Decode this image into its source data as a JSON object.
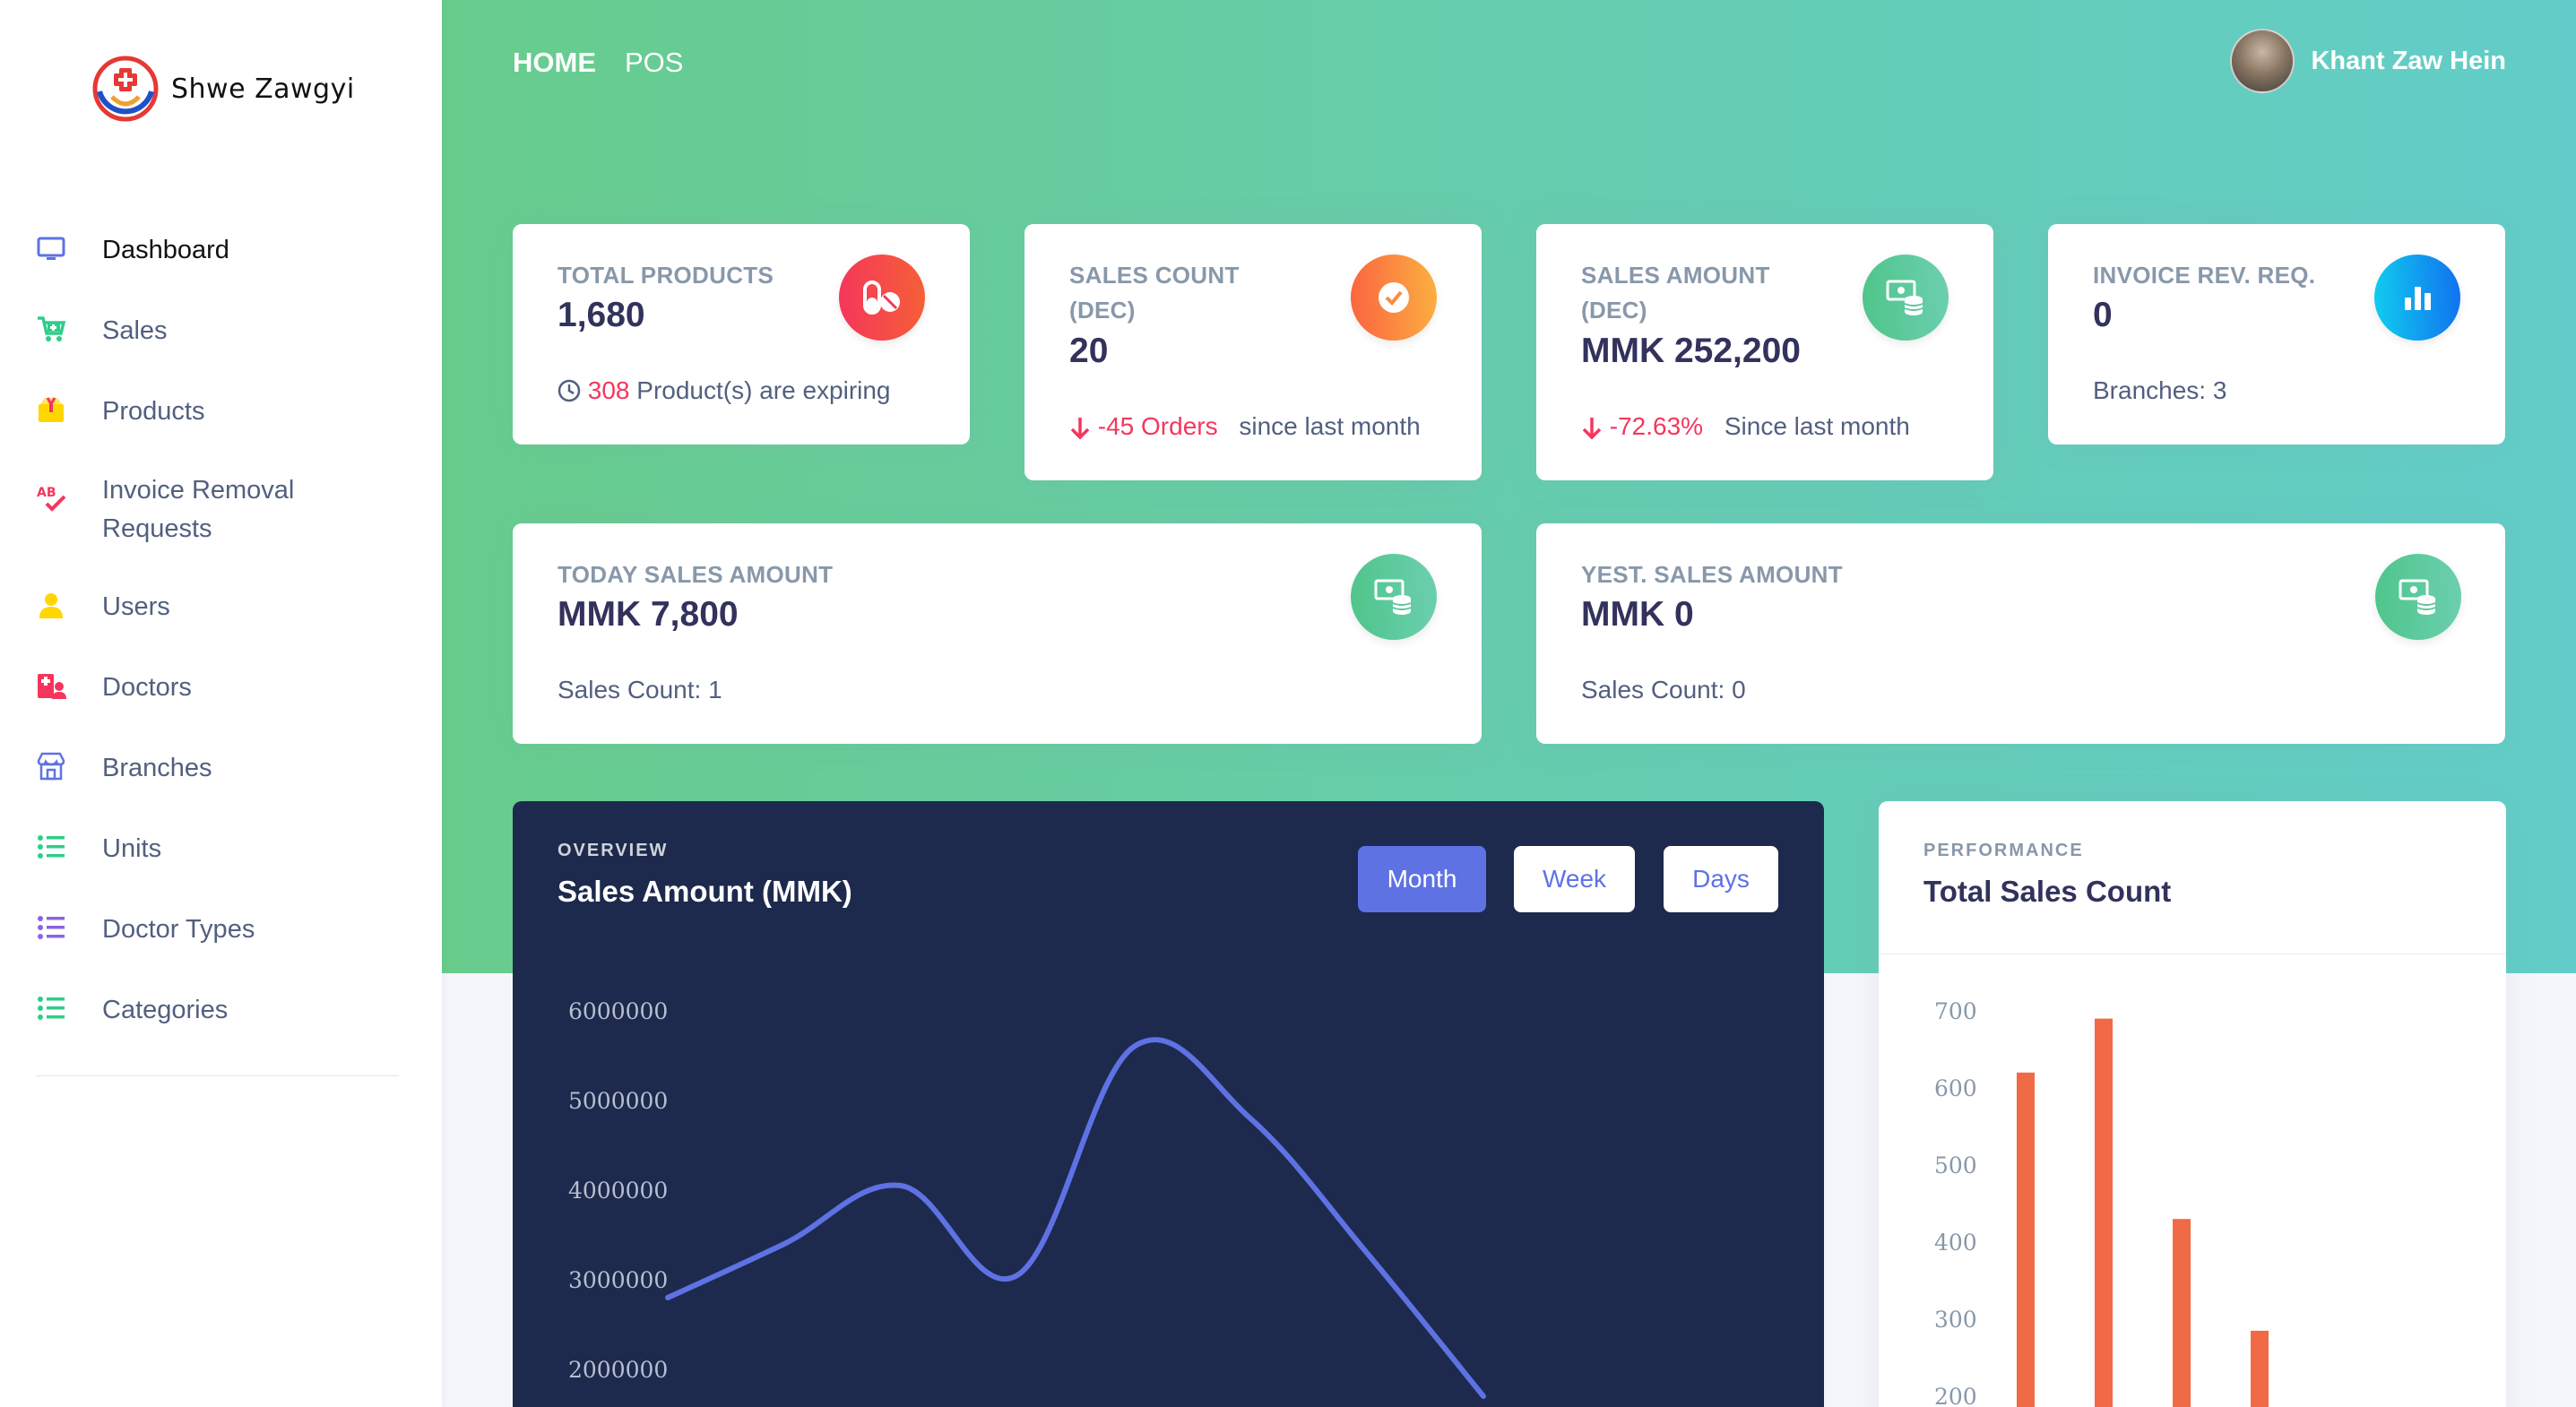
{
  "brand": {
    "name": "Shwe Zawgyi",
    "logo_icon": "pharmacy-logo-icon"
  },
  "sidebar": {
    "items": [
      {
        "label": "Dashboard",
        "icon": "monitor-icon",
        "color": "#5e72e4",
        "active": true
      },
      {
        "label": "Sales",
        "icon": "cart-icon",
        "color": "#2dce89"
      },
      {
        "label": "Products",
        "icon": "box-icon",
        "color": "#ffd600"
      },
      {
        "label": "Invoice Removal Requests",
        "icon": "spellcheck-icon",
        "color": "#f5365c"
      },
      {
        "label": "Users",
        "icon": "user-icon",
        "color": "#ffd600"
      },
      {
        "label": "Doctors",
        "icon": "hospital-user-icon",
        "color": "#f5365c"
      },
      {
        "label": "Branches",
        "icon": "store-icon",
        "color": "#5e72e4"
      },
      {
        "label": "Units",
        "icon": "list-icon",
        "color": "#2dce89"
      },
      {
        "label": "Doctor Types",
        "icon": "list-icon",
        "color": "#8965e0"
      },
      {
        "label": "Categories",
        "icon": "list-icon",
        "color": "#2dce89"
      }
    ]
  },
  "topnav": {
    "home": "HOME",
    "pos": "POS"
  },
  "user": {
    "name": "Khant Zaw Hein"
  },
  "cards": {
    "total_products": {
      "title": "Total Products",
      "value": "1,680",
      "expiring_count": "308",
      "expiring_text": "Product(s) are expiring",
      "icon": "pills-icon"
    },
    "sales_count": {
      "title": "Sales Count (Dec)",
      "value": "20",
      "change": "-45 Orders",
      "since": "since last month",
      "icon": "check-icon"
    },
    "sales_amount": {
      "title": "Sales Amount (Dec)",
      "value": "MMK 252,200",
      "change": "-72.63%",
      "since": "Since last month",
      "icon": "money-coins-icon"
    },
    "invoice_rev": {
      "title": "Invoice Rev. Req.",
      "value": "0",
      "foot": "Branches: 3",
      "icon": "bar-chart-icon"
    },
    "today_sales": {
      "title": "Today Sales Amount",
      "value": "MMK 7,800",
      "foot": "Sales Count: 1",
      "icon": "money-coins-icon"
    },
    "yest_sales": {
      "title": "Yest. Sales Amount",
      "value": "MMK 0",
      "foot": "Sales Count: 0",
      "icon": "money-coins-icon"
    }
  },
  "overview": {
    "overline": "Overview",
    "title": "Sales Amount (MMK)",
    "buttons": {
      "month": "Month",
      "week": "Week",
      "days": "Days"
    }
  },
  "performance": {
    "overline": "Performance",
    "title": "Total Sales Count"
  },
  "chart_data": [
    {
      "type": "line",
      "title": "Sales Amount (MMK)",
      "yticks": [
        2000000,
        3000000,
        4000000,
        5000000,
        6000000
      ],
      "ylim": [
        2000000,
        6000000
      ],
      "x": [
        0,
        1,
        2,
        3,
        4,
        5,
        6,
        7
      ],
      "values": [
        2800000,
        3400000,
        4050000,
        3050000,
        5600000,
        4800000,
        3300000,
        1700000
      ],
      "line_color": "#5e72e4",
      "grid": false
    },
    {
      "type": "bar",
      "title": "Total Sales Count",
      "yticks": [
        200,
        300,
        400,
        500,
        600,
        700
      ],
      "ylim": [
        200,
        700
      ],
      "values": [
        620,
        690,
        430,
        285
      ],
      "bar_color": "#f06b45",
      "grid": false
    }
  ]
}
